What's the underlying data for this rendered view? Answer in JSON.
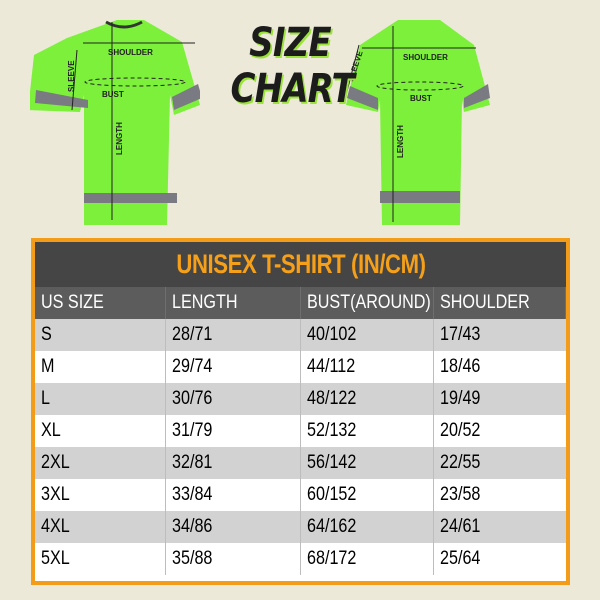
{
  "title": {
    "line1": "SIZE",
    "line2": "CHART"
  },
  "shirt_labels": {
    "shoulder": "SHOULDER",
    "sleeve": "SLEEVE",
    "bust": "BUST",
    "length": "LENGTH"
  },
  "colors": {
    "shirt": "#7cf03a",
    "reflective": "#7a7a82",
    "border": "#f39c1a",
    "title_band": "#454545",
    "title_text": "#f5a018",
    "header": "#5c5c5c",
    "background": "#ece9d8"
  },
  "table": {
    "title": "UNISEX T-SHIRT (IN/CM)",
    "columns": [
      "US SIZE",
      "LENGTH",
      "BUST(AROUND)",
      "SHOULDER"
    ],
    "rows": [
      [
        "S",
        "28/71",
        "40/102",
        "17/43"
      ],
      [
        "M",
        "29/74",
        "44/112",
        "18/46"
      ],
      [
        "L",
        "30/76",
        "48/122",
        "19/49"
      ],
      [
        "XL",
        "31/79",
        "52/132",
        "20/52"
      ],
      [
        "2XL",
        "32/81",
        "56/142",
        "22/55"
      ],
      [
        "3XL",
        "33/84",
        "60/152",
        "23/58"
      ],
      [
        "4XL",
        "34/86",
        "64/162",
        "24/61"
      ],
      [
        "5XL",
        "35/88",
        "68/172",
        "25/64"
      ]
    ]
  }
}
